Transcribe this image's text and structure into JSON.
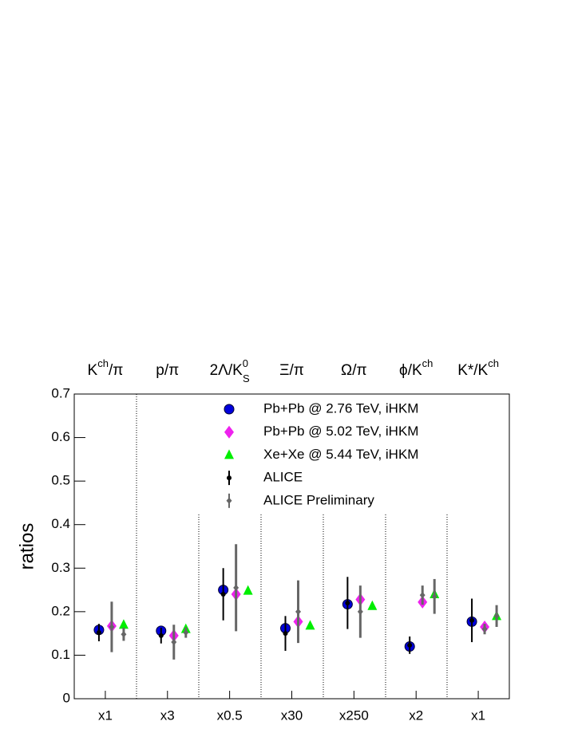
{
  "chart_data": {
    "type": "errorbar",
    "y_label": "ratios",
    "categories": [
      [
        {
          "text": "K"
        },
        {
          "sup": "ch"
        },
        {
          "text": "/π"
        }
      ],
      [
        {
          "text": "p/π"
        }
      ],
      [
        {
          "text": "2Λ/K"
        },
        {
          "sup": "0"
        },
        {
          "sub": "S"
        }
      ],
      [
        {
          "text": "Ξ/π"
        }
      ],
      [
        {
          "text": "Ω/π"
        }
      ],
      [
        {
          "text": "ϕ/K"
        },
        {
          "sup": "ch"
        }
      ],
      [
        {
          "text": "K*/K"
        },
        {
          "sup": "ch"
        }
      ]
    ],
    "scale_labels": [
      "x1",
      "x3",
      "x0.5",
      "x30",
      "x250",
      "x2",
      "x1"
    ],
    "ylim": [
      0,
      0.7
    ],
    "yticks": [
      {
        "value": 0,
        "label": "0"
      },
      0.1,
      0.2,
      0.3,
      0.4,
      0.5,
      0.6,
      0.7
    ],
    "series": [
      {
        "name": "Pb+Pb @ 2.76 TeV, iHKM",
        "marker": "circle",
        "color": "#0000dd",
        "values": [
          0.158,
          0.156,
          0.25,
          0.162,
          0.217,
          0.12,
          0.177
        ]
      },
      {
        "name": "Pb+Pb @ 5.02 TeV, iHKM",
        "marker": "diamond",
        "color": "#ee22ee",
        "values": [
          0.167,
          0.145,
          0.24,
          0.177,
          0.228,
          0.222,
          0.165
        ]
      },
      {
        "name": "Xe+Xe @ 5.44 TeV, iHKM",
        "marker": "triangle",
        "color": "#00ee00",
        "values": [
          0.17,
          0.16,
          0.248,
          0.168,
          0.213,
          0.24,
          0.19
        ]
      },
      {
        "name": "ALICE",
        "marker": "point",
        "color": "#000000",
        "values": [
          0.152,
          0.145,
          0.24,
          0.15,
          0.22,
          0.123,
          0.18
        ],
        "errors": [
          0.02,
          0.018,
          0.06,
          0.04,
          0.06,
          0.02,
          0.05
        ]
      },
      {
        "name": "ALICE Preliminary",
        "marker": "small-diamond",
        "color": "#666666",
        "values": [
          0.165,
          0.13,
          0.255,
          0.2,
          0.2,
          0.238,
          0.16
        ],
        "errors": [
          0.058,
          0.04,
          0.1,
          0.072,
          0.06,
          0.022,
          0.012
        ],
        "xe_values": [
          0.148,
          0.152,
          null,
          null,
          null,
          0.235,
          0.19
        ],
        "xe_errors": [
          0.015,
          0.012,
          null,
          null,
          null,
          0.04,
          0.025
        ]
      }
    ]
  }
}
